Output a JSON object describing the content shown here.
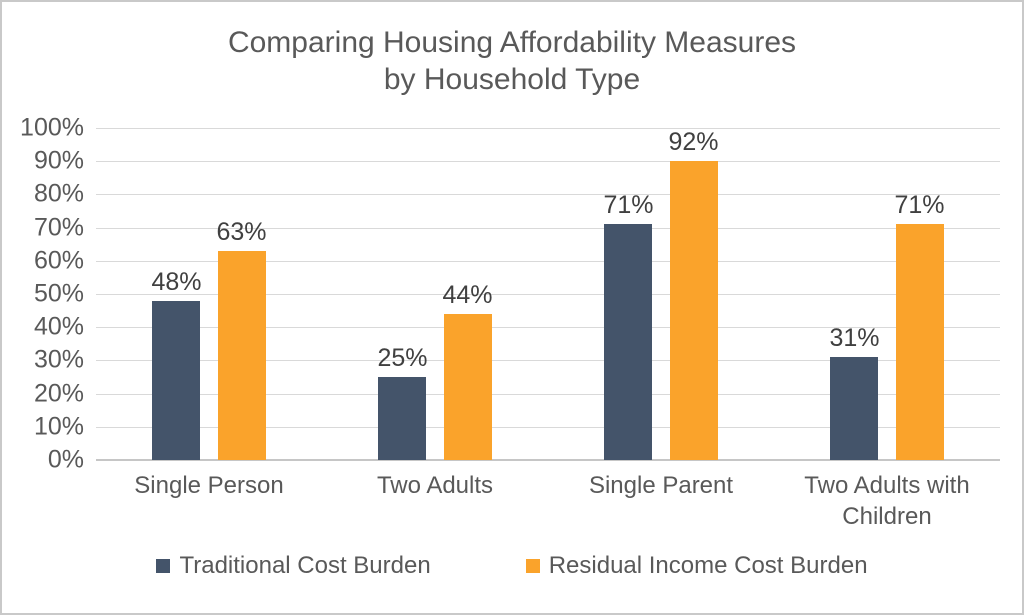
{
  "frame": {
    "background": "#FFFFFF",
    "border_color": "#C9C9C9"
  },
  "title": {
    "line1": "Comparing Housing Affordability Measures",
    "line2": "by Household Type"
  },
  "chart_data": {
    "type": "bar",
    "title": "Comparing Housing Affordability Measures by Household Type",
    "categories": [
      "Single Person",
      "Two Adults",
      "Single Parent",
      "Two Adults with Children"
    ],
    "series": [
      {
        "name": "Traditional Cost Burden",
        "color": "#44546A",
        "values": [
          48,
          25,
          71,
          31
        ]
      },
      {
        "name": "Residual Income Cost Burden",
        "color": "#FAA32B",
        "values": [
          63,
          44,
          92,
          71
        ]
      }
    ],
    "value_label_suffix": "%",
    "xlabel": "",
    "ylabel": "",
    "ylim": [
      0,
      100
    ],
    "y_tick_step": 10,
    "y_ticks": [
      "0%",
      "10%",
      "20%",
      "30%",
      "40%",
      "50%",
      "60%",
      "70%",
      "80%",
      "90%",
      "100%"
    ],
    "grid": "horizontal",
    "legend_position": "bottom"
  },
  "colors": {
    "grid": "#D9D9D9",
    "axis": "#C6C6C6",
    "tick_text": "#595959",
    "value_text": "#404040",
    "category_text": "#595959",
    "legend_text": "#595959",
    "title_text": "#595959"
  }
}
